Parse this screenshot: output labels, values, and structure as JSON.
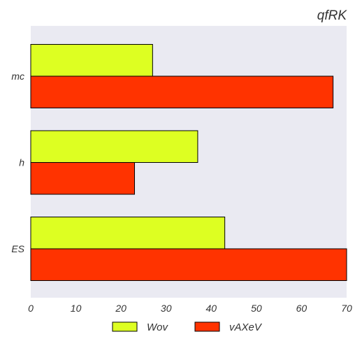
{
  "chart_data": {
    "type": "bar",
    "orientation": "horizontal",
    "title": "qfRK",
    "xlabel": "",
    "ylabel": "",
    "categories": [
      "mc",
      "h",
      "ES"
    ],
    "series": [
      {
        "name": "Wov",
        "values": [
          27,
          37,
          43
        ],
        "color": "#ddff22"
      },
      {
        "name": "vAXeV",
        "values": [
          67,
          23,
          70
        ],
        "color": "#ff3300"
      }
    ],
    "xlim": [
      0,
      70
    ],
    "xticks": [
      0,
      10,
      20,
      30,
      40,
      50,
      60,
      70
    ],
    "xtick_labels": [
      "0",
      "10",
      "20",
      "30",
      "40",
      "50",
      "60",
      "70"
    ],
    "grid": false,
    "plot_background": "#eaeaf2",
    "legend_position": "bottom-center"
  }
}
